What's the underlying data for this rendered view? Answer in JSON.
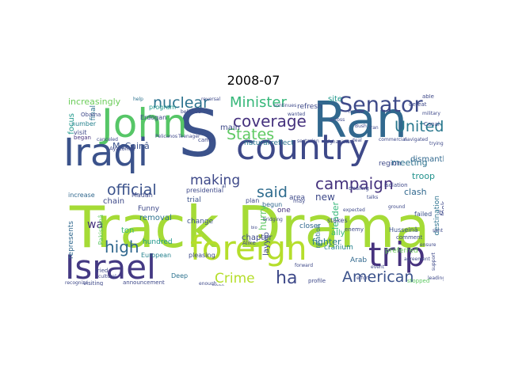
{
  "title": "2008-07",
  "words": [
    {
      "text": "Track Drama",
      "color": "#a5db36"
    },
    {
      "text": "S",
      "color": "#3b528b"
    },
    {
      "text": "John",
      "color": "#56c667"
    },
    {
      "text": "Ran",
      "color": "#31688e"
    },
    {
      "text": "country",
      "color": "#3e4989"
    },
    {
      "text": "Iraqi",
      "color": "#3b528b"
    },
    {
      "text": "foreign",
      "color": "#b5de2b"
    },
    {
      "text": "trip",
      "color": "#46327e"
    },
    {
      "text": "Israel",
      "color": "#443983"
    },
    {
      "text": "Senator",
      "color": "#3e4a89"
    },
    {
      "text": "American",
      "color": "#3b528b"
    },
    {
      "text": "Minister",
      "color": "#35b779"
    },
    {
      "text": "nuclear",
      "color": "#2c728e"
    },
    {
      "text": "coverage",
      "color": "#46327e"
    },
    {
      "text": "States",
      "color": "#5ec962"
    },
    {
      "text": "United",
      "color": "#2a788e"
    },
    {
      "text": "campaign",
      "color": "#46337e"
    },
    {
      "text": "official",
      "color": "#3b528b"
    },
    {
      "text": "said",
      "color": "#2f6c8e"
    },
    {
      "text": "making",
      "color": "#3e4989"
    },
    {
      "text": "high",
      "color": "#31688e"
    },
    {
      "text": "Crime",
      "color": "#b5de2b"
    },
    {
      "text": "ha",
      "color": "#3e4989"
    },
    {
      "text": "increasingly",
      "color": "#6ccd5a"
    },
    {
      "text": "focus",
      "color": "#1f988b"
    },
    {
      "text": "McCainâ",
      "color": "#3b528b"
    },
    {
      "text": "meeting",
      "color": "#2c728e"
    },
    {
      "text": "troop",
      "color": "#21918c"
    },
    {
      "text": "clash",
      "color": "#31688e"
    },
    {
      "text": "new",
      "color": "#3e4989"
    },
    {
      "text": "leader",
      "color": "#35b779"
    },
    {
      "text": "area",
      "color": "#3e4989"
    },
    {
      "text": "chain",
      "color": "#3e4989"
    },
    {
      "text": "removal",
      "color": "#2c728e"
    },
    {
      "text": "wa",
      "color": "#46327e"
    },
    {
      "text": "ton",
      "color": "#35b779"
    },
    {
      "text": "hundred",
      "color": "#1f988b"
    },
    {
      "text": "chapter",
      "color": "#3e4989"
    },
    {
      "text": "fighter",
      "color": "#2a788e"
    },
    {
      "text": "Funny",
      "color": "#3e4989"
    },
    {
      "text": "represents",
      "color": "#31688e"
    },
    {
      "text": "European",
      "color": "#26828e"
    },
    {
      "text": "Deep",
      "color": "#2c728e"
    },
    {
      "text": "announcement",
      "color": "#3e4989"
    },
    {
      "text": "Pakistanâ",
      "color": "#5ec962"
    },
    {
      "text": "change",
      "color": "#3b528b"
    },
    {
      "text": "natural",
      "color": "#2a788e"
    },
    {
      "text": "one",
      "color": "#46327e"
    },
    {
      "text": "closer",
      "color": "#31688e"
    },
    {
      "text": "Husseinâ",
      "color": "#3b528b"
    },
    {
      "text": "look",
      "color": "#3e4989"
    },
    {
      "text": "ally",
      "color": "#35b779"
    },
    {
      "text": "Arab",
      "color": "#31688e"
    },
    {
      "text": "cranium",
      "color": "#26828e"
    },
    {
      "text": "preferred",
      "color": "#6ccd5a"
    },
    {
      "text": "stakes",
      "color": "#3e4989"
    },
    {
      "text": "site",
      "color": "#1f988b"
    },
    {
      "text": "dismantling",
      "color": "#31688e"
    },
    {
      "text": "destination",
      "color": "#2c728e"
    },
    {
      "text": "region",
      "color": "#3e4989"
    },
    {
      "text": "failed",
      "color": "#3b528b"
    },
    {
      "text": "Canal",
      "color": "#3e4989"
    },
    {
      "text": "back",
      "color": "#3e4989"
    },
    {
      "text": "main",
      "color": "#3e4989"
    },
    {
      "text": "reflect",
      "color": "#2c728e"
    },
    {
      "text": "refresh",
      "color": "#3e4989"
    },
    {
      "text": "program",
      "color": "#1f988b"
    },
    {
      "text": "Erdogan",
      "color": "#3e4989"
    },
    {
      "text": "number",
      "color": "#26828e"
    },
    {
      "text": "visit",
      "color": "#3e4989"
    },
    {
      "text": "began",
      "color": "#46327e"
    },
    {
      "text": "final",
      "color": "#2c728e"
    },
    {
      "text": "presidential",
      "color": "#3e4989"
    },
    {
      "text": "trial",
      "color": "#3b528b"
    },
    {
      "text": "plan",
      "color": "#3e4989"
    },
    {
      "text": "begun",
      "color": "#31688e"
    },
    {
      "text": "may",
      "color": "#3e4989"
    },
    {
      "text": "increase",
      "color": "#31688e"
    },
    {
      "text": "pleasing",
      "color": "#3e4989"
    },
    {
      "text": "Alike",
      "color": "#3e4989"
    },
    {
      "text": "camo",
      "color": "#3e4989"
    },
    {
      "text": "profile",
      "color": "#3e4989"
    },
    {
      "text": "relation",
      "color": "#2c728e"
    },
    {
      "text": "scene",
      "color": "#3e4989"
    },
    {
      "text": "isolation",
      "color": "#3e4989"
    },
    {
      "text": "dealing",
      "color": "#3e4989"
    },
    {
      "text": "Obama",
      "color": "#3e4989"
    },
    {
      "text": "Ayatollah",
      "color": "#3e4989"
    },
    {
      "text": "layyip",
      "color": "#3e4989"
    },
    {
      "text": "hurry",
      "color": "#5ec962"
    },
    {
      "text": "enemy",
      "color": "#3e4989"
    },
    {
      "text": "help",
      "color": "#2c728e"
    },
    {
      "text": "reversal",
      "color": "#3e4989"
    },
    {
      "text": "tried",
      "color": "#3e4989"
    },
    {
      "text": "cultural",
      "color": "#3e4989"
    },
    {
      "text": "recognize",
      "color": "#3e4989"
    },
    {
      "text": "visiting",
      "color": "#3e4989"
    },
    {
      "text": "comment",
      "color": "#3e4989"
    },
    {
      "text": "stopped",
      "color": "#5ec962"
    },
    {
      "text": "defeat",
      "color": "#3e4989"
    },
    {
      "text": "military",
      "color": "#3e4989"
    },
    {
      "text": "able",
      "color": "#3e4989"
    },
    {
      "text": "commercial",
      "color": "#3e4989"
    },
    {
      "text": "navigated",
      "color": "#3e4989"
    },
    {
      "text": "Afghanistan",
      "color": "#3e4989"
    },
    {
      "text": "deal",
      "color": "#3e4989"
    },
    {
      "text": "leading",
      "color": "#3e4989"
    },
    {
      "text": "trying",
      "color": "#3e4989"
    },
    {
      "text": "bridging",
      "color": "#3e4989"
    },
    {
      "text": "support",
      "color": "#3e4989"
    },
    {
      "text": "agreement",
      "color": "#3e4989"
    },
    {
      "text": "forward",
      "color": "#3e4989"
    },
    {
      "text": "Teenager",
      "color": "#3e4989"
    },
    {
      "text": "Pelicanos",
      "color": "#3e4989"
    },
    {
      "text": "canceled",
      "color": "#3e4989"
    },
    {
      "text": "sectarian",
      "color": "#3e4989"
    },
    {
      "text": "expected",
      "color": "#3e4989"
    },
    {
      "text": "Madan",
      "color": "#3e4989"
    },
    {
      "text": "continues",
      "color": "#3e4989"
    },
    {
      "text": "believed",
      "color": "#3e4989"
    },
    {
      "text": "bio",
      "color": "#3e4989"
    },
    {
      "text": "Bush",
      "color": "#3e4989"
    },
    {
      "text": "Iran",
      "color": "#3e4989"
    },
    {
      "text": "wanted",
      "color": "#3e4989"
    },
    {
      "text": "ground",
      "color": "#3e4989"
    },
    {
      "text": "al",
      "color": "#3e4989"
    },
    {
      "text": "sent",
      "color": "#3e4989"
    },
    {
      "text": "hope",
      "color": "#3e4989"
    },
    {
      "text": "ensure",
      "color": "#3e4989"
    },
    {
      "text": "effort",
      "color": "#3e4989"
    },
    {
      "text": "enough",
      "color": "#3e4989"
    },
    {
      "text": "event",
      "color": "#3e4989"
    },
    {
      "text": "talks",
      "color": "#3e4989"
    },
    {
      "text": "across",
      "color": "#3e4989"
    },
    {
      "text": "matter",
      "color": "#3e4989"
    }
  ]
}
